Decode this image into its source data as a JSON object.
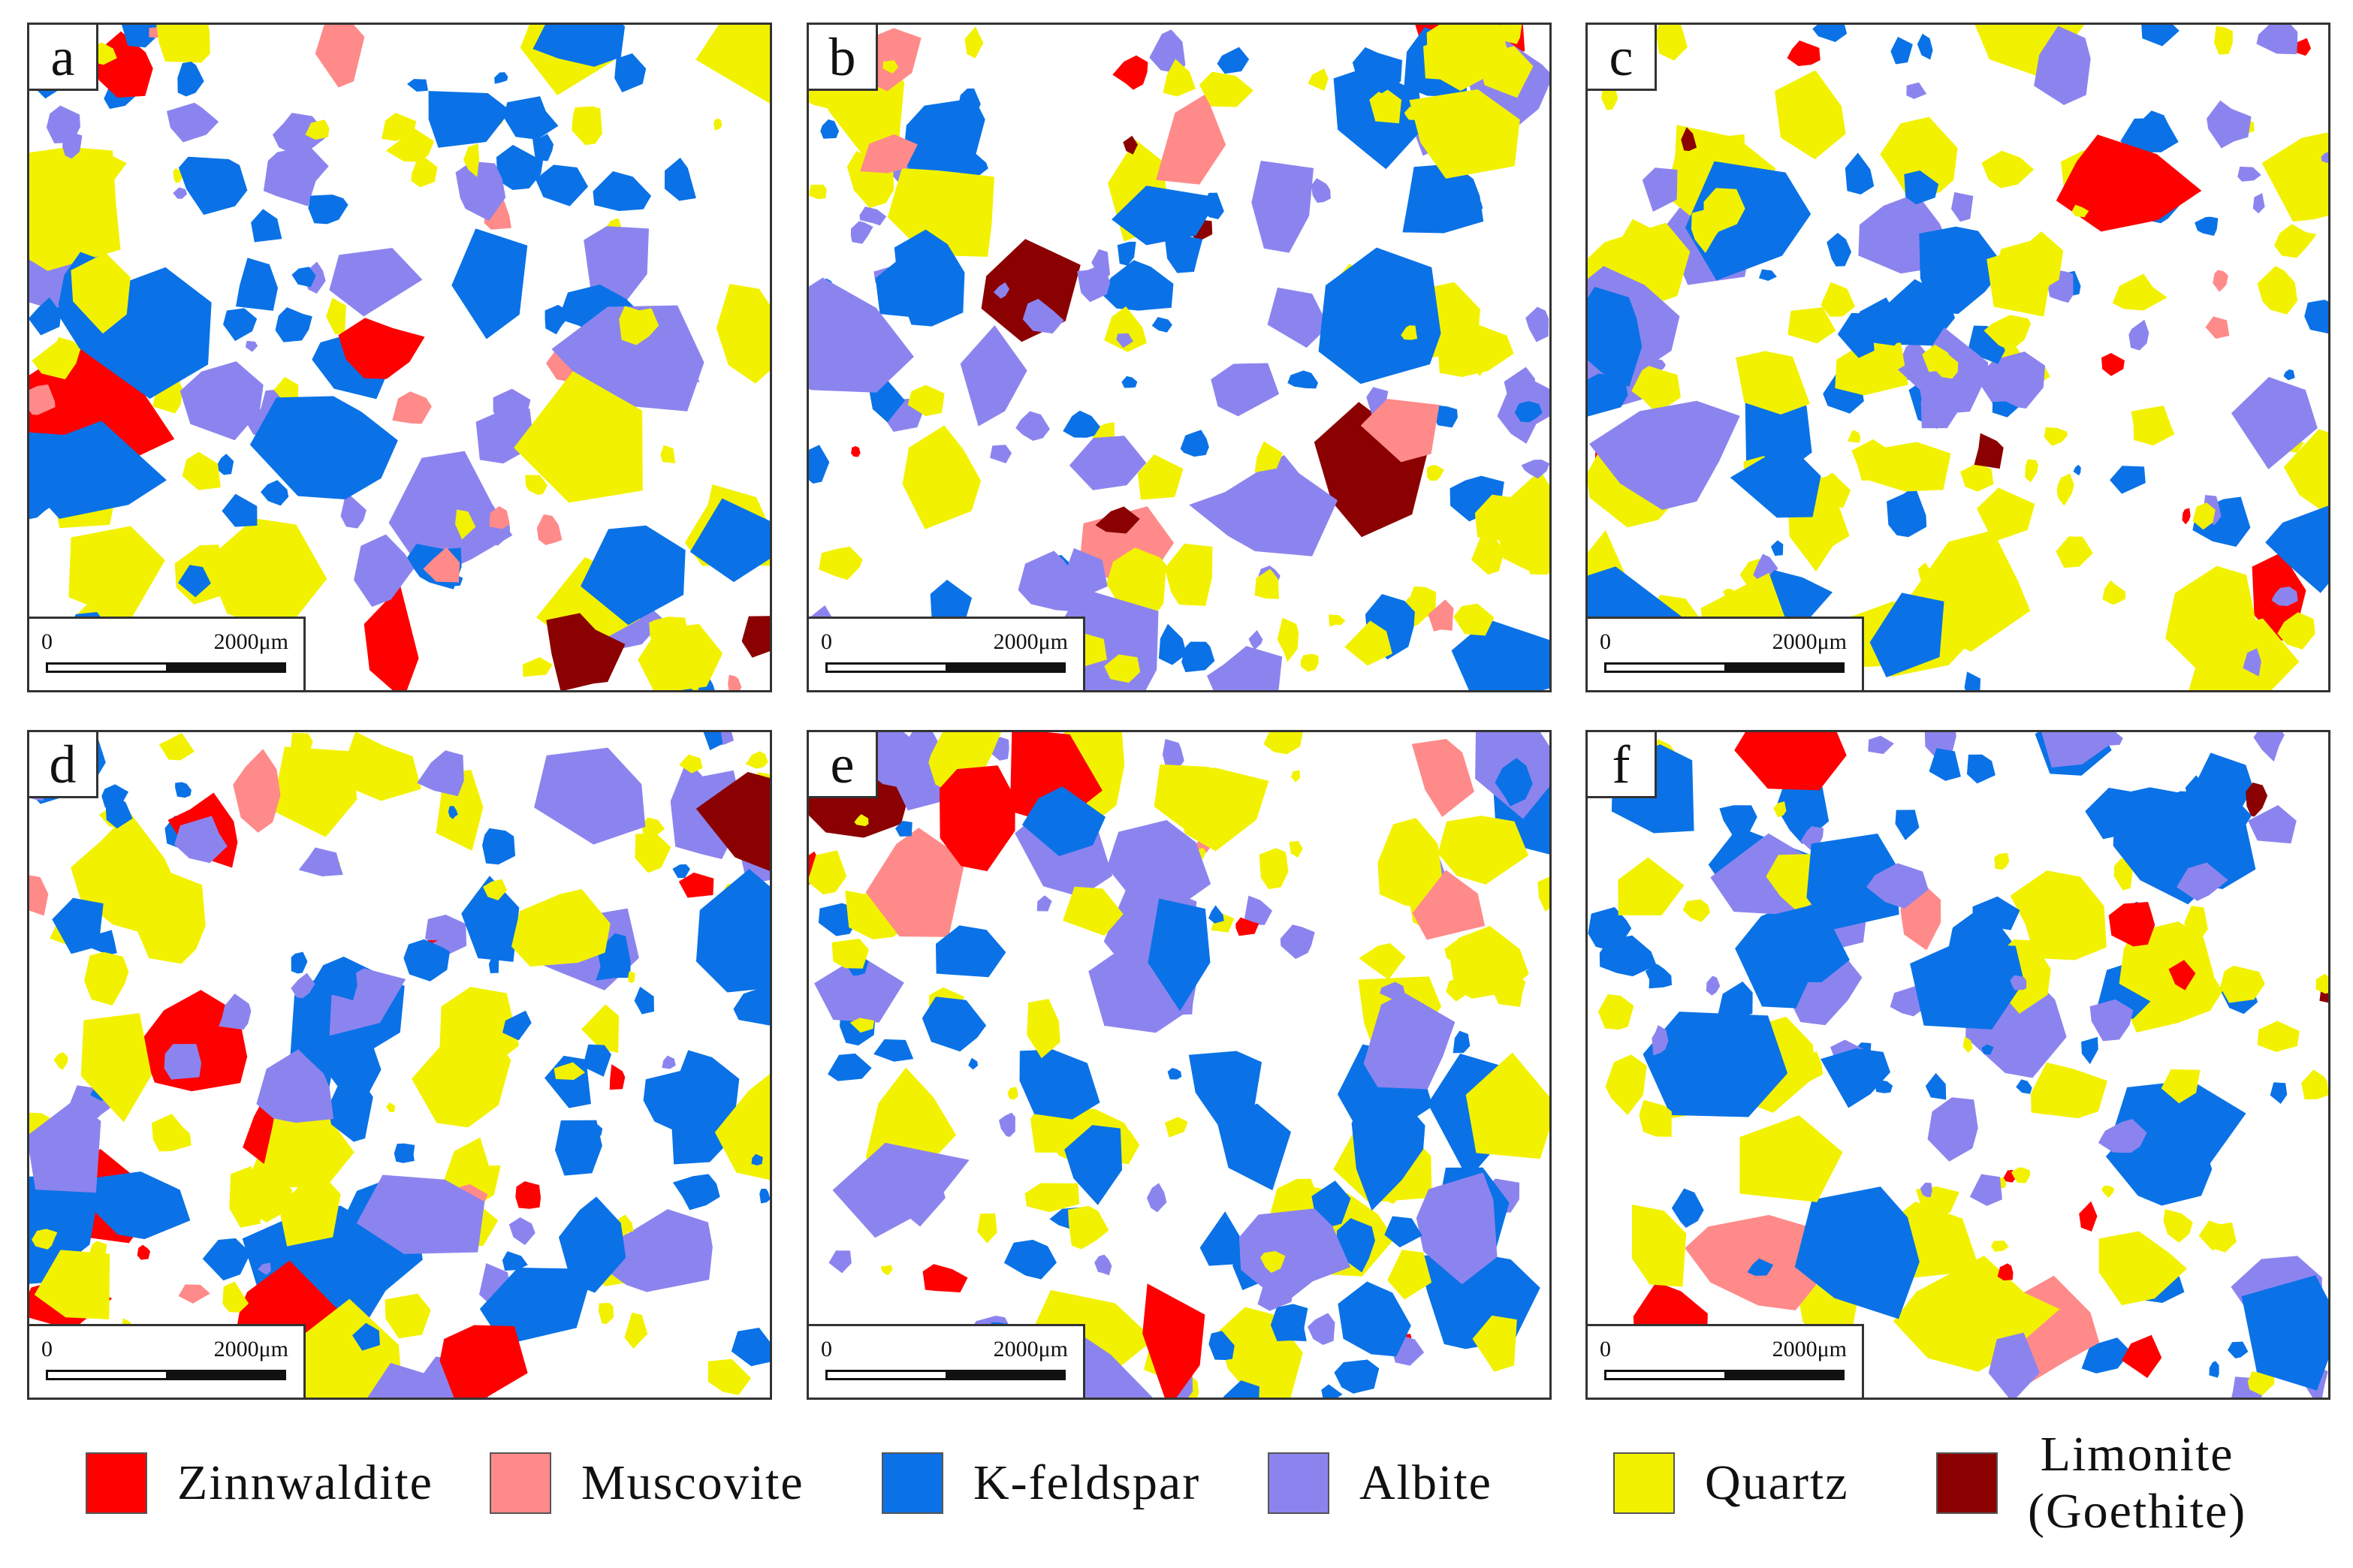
{
  "colors": {
    "zinnwaldite": "#ff0000",
    "muscovite": "#ff8a8a",
    "k_feldspar": "#0a72e6",
    "albite": "#8c84ee",
    "quartz": "#f2f200",
    "limonite": "#8b0000"
  },
  "panels": [
    {
      "id": "a",
      "label": "a",
      "scale_start": "0",
      "scale_end": "2000μm"
    },
    {
      "id": "b",
      "label": "b",
      "scale_start": "0",
      "scale_end": "2000μm"
    },
    {
      "id": "c",
      "label": "c",
      "scale_start": "0",
      "scale_end": "2000μm"
    },
    {
      "id": "d",
      "label": "d",
      "scale_start": "0",
      "scale_end": "2000μm"
    },
    {
      "id": "e",
      "label": "e",
      "scale_start": "0",
      "scale_end": "2000μm"
    },
    {
      "id": "f",
      "label": "f",
      "scale_start": "0",
      "scale_end": "2000μm"
    }
  ],
  "legend": [
    {
      "key": "zinnwaldite",
      "label": "Zinnwaldite"
    },
    {
      "key": "muscovite",
      "label": "Muscovite"
    },
    {
      "key": "k_feldspar",
      "label": "K-feldspar"
    },
    {
      "key": "albite",
      "label": "Albite"
    },
    {
      "key": "quartz",
      "label": "Quartz"
    },
    {
      "key": "limonite",
      "label_line1": "Limonite",
      "label_line2": "(Goethite)"
    }
  ]
}
